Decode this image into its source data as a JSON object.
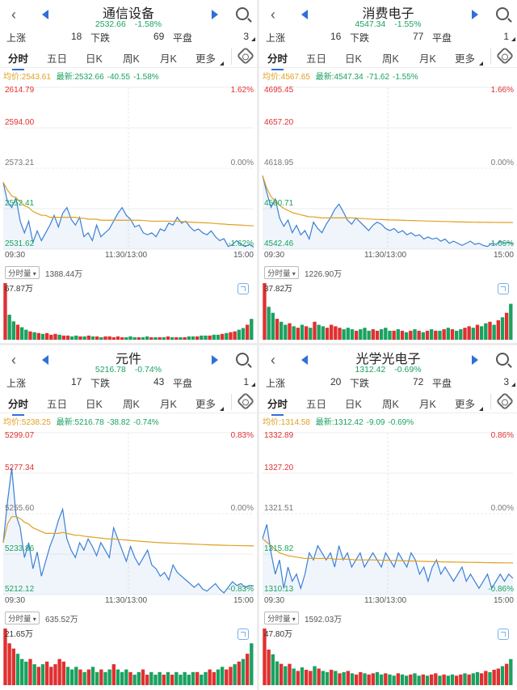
{
  "panels": [
    {
      "title": "通信设备",
      "quote": {
        "price": "2532.66",
        "pct": "-1.58%"
      },
      "stats": {
        "up_label": "上涨",
        "up": "18",
        "down_label": "下跌",
        "down": "69",
        "flat_label": "平盘",
        "flat": "3"
      },
      "tabs": [
        "分时",
        "五日",
        "日K",
        "周K",
        "月K",
        "更多"
      ],
      "info": {
        "avg_label": "均价:",
        "avg": "2543.61",
        "latest_label": "最新:",
        "latest": "2532.66",
        "chg": "-40.55",
        "pct": "-1.58%"
      },
      "y_labels": {
        "top": "2614.79",
        "upper": "2594.00",
        "mid": "2573.21",
        "lower": "2552.41",
        "bottom": "2531.62"
      },
      "pct_labels": {
        "top": "1.62%",
        "mid": "0.00%",
        "bottom": "-1.62%"
      },
      "time_labels": {
        "start": "09:30",
        "mid": "11:30/13:00",
        "end": "15:00"
      },
      "volume": {
        "button": "分时量",
        "total": "1388.44万",
        "max": "67.87万"
      },
      "chart_data": {
        "type": "line",
        "ylim": [
          2531.62,
          2614.79
        ],
        "prev_close": 2573.21,
        "price": [
          2566,
          2556,
          2553,
          2558,
          2546,
          2540,
          2546,
          2535,
          2541,
          2536,
          2540,
          2544,
          2549,
          2543,
          2550,
          2553,
          2547,
          2544,
          2548,
          2538,
          2540,
          2536,
          2544,
          2538,
          2540,
          2542,
          2546,
          2550,
          2553,
          2549,
          2547,
          2543,
          2544,
          2540,
          2539,
          2540,
          2538,
          2542,
          2541,
          2545,
          2544,
          2548,
          2545,
          2546,
          2543,
          2541,
          2542,
          2540,
          2539,
          2541,
          2538,
          2536,
          2537,
          2533,
          2534,
          2536,
          2534,
          2533,
          2534,
          2532.66
        ],
        "avg": [
          2566,
          2562,
          2559,
          2558,
          2556,
          2554,
          2553,
          2551,
          2550,
          2549,
          2549,
          2548,
          2548,
          2548,
          2548,
          2548,
          2548,
          2548,
          2547.5,
          2547.5,
          2547,
          2547,
          2547,
          2546.5,
          2546.5,
          2546.5,
          2546.5,
          2546.5,
          2546.5,
          2546.5,
          2546.5,
          2546.5,
          2546.5,
          2546.3,
          2546.2,
          2546,
          2546,
          2546,
          2546,
          2546,
          2546,
          2546,
          2545.8,
          2545.6,
          2545.5,
          2545.4,
          2545.3,
          2545.2,
          2545.1,
          2545,
          2544.8,
          2544.6,
          2544.5,
          2544.3,
          2544.2,
          2544.1,
          2544,
          2543.8,
          2543.7,
          2543.61
        ],
        "vol_max": 67.87,
        "volumes": [
          67.87,
          30,
          22,
          18,
          15,
          12,
          10,
          9,
          8,
          7,
          8,
          6,
          7,
          6,
          5,
          5,
          4,
          5,
          4,
          4,
          5,
          4,
          4,
          3,
          4,
          4,
          3,
          4,
          3,
          3,
          4,
          3,
          3,
          3,
          4,
          3,
          3,
          3,
          3,
          4,
          3,
          3,
          3,
          3,
          4,
          4,
          4,
          5,
          5,
          5,
          6,
          6,
          7,
          8,
          9,
          10,
          12,
          14,
          18,
          25
        ]
      }
    },
    {
      "title": "消费电子",
      "quote": {
        "price": "4547.34",
        "pct": "-1.55%"
      },
      "stats": {
        "up_label": "上涨",
        "up": "16",
        "down_label": "下跌",
        "down": "77",
        "flat_label": "平盘",
        "flat": "1"
      },
      "tabs": [
        "分时",
        "五日",
        "日K",
        "周K",
        "月K",
        "更多"
      ],
      "info": {
        "avg_label": "均价:",
        "avg": "4567.65",
        "latest_label": "最新:",
        "latest": "4547.34",
        "chg": "-71.62",
        "pct": "-1.55%"
      },
      "y_labels": {
        "top": "4695.45",
        "upper": "4657.20",
        "mid": "4618.95",
        "lower": "4580.71",
        "bottom": "4542.46"
      },
      "pct_labels": {
        "top": "1.66%",
        "mid": "0.00%",
        "bottom": "-1.66%"
      },
      "time_labels": {
        "start": "09:30",
        "mid": "11:30/13:00",
        "end": "15:00"
      },
      "volume": {
        "button": "分时量",
        "total": "1226.90万",
        "max": "37.82万"
      },
      "chart_data": {
        "type": "line",
        "ylim": [
          4542.46,
          4695.45
        ],
        "prev_close": 4618.95,
        "price": [
          4612,
          4596,
          4582,
          4590,
          4572,
          4564,
          4570,
          4558,
          4565,
          4556,
          4560,
          4552,
          4568,
          4562,
          4558,
          4566,
          4572,
          4580,
          4585,
          4578,
          4570,
          4566,
          4572,
          4568,
          4564,
          4560,
          4565,
          4568,
          4566,
          4562,
          4560,
          4562,
          4558,
          4560,
          4556,
          4558,
          4555,
          4556,
          4552,
          4554,
          4552,
          4553,
          4550,
          4552,
          4548,
          4550,
          4548,
          4546,
          4548,
          4550,
          4547,
          4548,
          4546,
          4545,
          4548,
          4547,
          4550,
          4548,
          4549,
          4547.34
        ],
        "avg": [
          4612,
          4600,
          4592,
          4588,
          4584,
          4581,
          4579,
          4577,
          4576,
          4575,
          4574,
          4573,
          4573,
          4572.5,
          4572,
          4572,
          4572,
          4572,
          4572,
          4572,
          4572,
          4572,
          4571.8,
          4571.5,
          4571.3,
          4571,
          4570.8,
          4570.6,
          4570.5,
          4570.3,
          4570.1,
          4570,
          4569.9,
          4569.8,
          4569.6,
          4569.5,
          4569.4,
          4569.3,
          4569.2,
          4569,
          4568.9,
          4568.8,
          4568.7,
          4568.6,
          4568.5,
          4568.4,
          4568.3,
          4568.2,
          4568.1,
          4568,
          4567.95,
          4567.9,
          4567.85,
          4567.8,
          4567.78,
          4567.75,
          4567.72,
          4567.7,
          4567.68,
          4567.65
        ],
        "vol_max": 37.82,
        "volumes": [
          37.82,
          22,
          18,
          14,
          12,
          10,
          11,
          9,
          8,
          10,
          9,
          8,
          12,
          10,
          9,
          8,
          10,
          9,
          8,
          7,
          8,
          7,
          6,
          7,
          8,
          6,
          7,
          6,
          7,
          8,
          6,
          6,
          7,
          6,
          5,
          6,
          7,
          6,
          5,
          6,
          7,
          6,
          6,
          7,
          8,
          7,
          6,
          7,
          8,
          9,
          8,
          10,
          9,
          11,
          12,
          10,
          13,
          15,
          18,
          24
        ]
      }
    },
    {
      "title": "元件",
      "quote": {
        "price": "5216.78",
        "pct": "-0.74%"
      },
      "stats": {
        "up_label": "上涨",
        "up": "17",
        "down_label": "下跌",
        "down": "43",
        "flat_label": "平盘",
        "flat": "1"
      },
      "tabs": [
        "分时",
        "五日",
        "日K",
        "周K",
        "月K",
        "更多"
      ],
      "info": {
        "avg_label": "均价:",
        "avg": "5238.25",
        "latest_label": "最新:",
        "latest": "5216.78",
        "chg": "-38.82",
        "pct": "-0.74%"
      },
      "y_labels": {
        "top": "5299.07",
        "upper": "5277.34",
        "mid": "5255.60",
        "lower": "5233.86",
        "bottom": "5212.12"
      },
      "pct_labels": {
        "top": "0.83%",
        "mid": "0.00%",
        "bottom": "-0.83%"
      },
      "time_labels": {
        "start": "09:30",
        "mid": "11:30/13:00",
        "end": "15:00"
      },
      "volume": {
        "button": "分时量",
        "total": "635.52万",
        "max": "21.65万"
      },
      "chart_data": {
        "type": "line",
        "ylim": [
          5212.12,
          5299.07
        ],
        "prev_close": 5255.6,
        "price": [
          5240,
          5262,
          5280,
          5255,
          5248,
          5232,
          5240,
          5226,
          5235,
          5222,
          5230,
          5238,
          5244,
          5252,
          5258,
          5242,
          5236,
          5232,
          5240,
          5236,
          5242,
          5238,
          5233,
          5240,
          5236,
          5232,
          5248,
          5242,
          5236,
          5230,
          5238,
          5232,
          5228,
          5232,
          5236,
          5228,
          5226,
          5222,
          5224,
          5220,
          5228,
          5224,
          5222,
          5220,
          5218,
          5216,
          5218,
          5215,
          5214,
          5216,
          5218,
          5215,
          5213,
          5216,
          5219,
          5217,
          5218,
          5216,
          5217,
          5216.78
        ],
        "avg": [
          5240,
          5250,
          5254,
          5254,
          5253,
          5251,
          5250,
          5248,
          5247,
          5246,
          5245,
          5245,
          5245,
          5245,
          5245.5,
          5245,
          5244.5,
          5244,
          5244,
          5243.5,
          5243.2,
          5243,
          5242.7,
          5242.5,
          5242.2,
          5242,
          5242,
          5241.8,
          5241.6,
          5241.4,
          5241.2,
          5241,
          5240.8,
          5240.6,
          5240.5,
          5240.3,
          5240.1,
          5240,
          5239.9,
          5239.8,
          5239.7,
          5239.6,
          5239.5,
          5239.4,
          5239.3,
          5239.2,
          5239.1,
          5239,
          5238.9,
          5238.8,
          5238.75,
          5238.7,
          5238.6,
          5238.55,
          5238.5,
          5238.45,
          5238.4,
          5238.35,
          5238.3,
          5238.25
        ],
        "vol_max": 21.65,
        "volumes": [
          21.65,
          16,
          14,
          12,
          10,
          9,
          10,
          8,
          7,
          8,
          9,
          7,
          8,
          10,
          9,
          7,
          6,
          7,
          6,
          5,
          6,
          7,
          5,
          6,
          5,
          6,
          8,
          6,
          5,
          6,
          5,
          4,
          5,
          6,
          4,
          5,
          4,
          5,
          4,
          5,
          4,
          5,
          4,
          5,
          4,
          5,
          5,
          4,
          5,
          6,
          5,
          6,
          7,
          6,
          7,
          8,
          9,
          10,
          12,
          16
        ]
      }
    },
    {
      "title": "光学光电子",
      "quote": {
        "price": "1312.42",
        "pct": "-0.69%"
      },
      "stats": {
        "up_label": "上涨",
        "up": "20",
        "down_label": "下跌",
        "down": "72",
        "flat_label": "平盘",
        "flat": "3"
      },
      "tabs": [
        "分时",
        "五日",
        "日K",
        "周K",
        "月K",
        "更多"
      ],
      "info": {
        "avg_label": "均价:",
        "avg": "1314.58",
        "latest_label": "最新:",
        "latest": "1312.42",
        "chg": "-9.09",
        "pct": "-0.69%"
      },
      "y_labels": {
        "top": "1332.89",
        "upper": "1327.20",
        "mid": "1321.51",
        "lower": "1315.82",
        "bottom": "1310.13"
      },
      "pct_labels": {
        "top": "0.86%",
        "mid": "0.00%",
        "bottom": "-0.86%"
      },
      "time_labels": {
        "start": "09:30",
        "mid": "11:30/13:00",
        "end": "15:00"
      },
      "volume": {
        "button": "分时量",
        "total": "1592.03万",
        "max": "47.80万"
      },
      "chart_data": {
        "type": "line",
        "ylim": [
          1310.13,
          1332.89
        ],
        "prev_close": 1321.51,
        "price": [
          1318,
          1320,
          1316,
          1313,
          1315,
          1311,
          1314,
          1312,
          1313,
          1311,
          1313,
          1316,
          1315,
          1317,
          1316,
          1315,
          1316,
          1314,
          1317,
          1315,
          1316,
          1314,
          1315,
          1316,
          1314,
          1315,
          1316,
          1315,
          1314,
          1316,
          1315,
          1314,
          1316,
          1315,
          1314,
          1316,
          1315,
          1313,
          1314,
          1312,
          1314,
          1315,
          1313,
          1314,
          1313,
          1312,
          1313,
          1314,
          1312,
          1313,
          1312,
          1311,
          1312,
          1313,
          1311,
          1312,
          1313,
          1312,
          1313,
          1312.42
        ],
        "avg": [
          1318,
          1317.5,
          1317,
          1316.5,
          1316,
          1315.8,
          1315.6,
          1315.5,
          1315.4,
          1315.3,
          1315.2,
          1315.2,
          1315.2,
          1315.2,
          1315.2,
          1315.2,
          1315.2,
          1315.1,
          1315.1,
          1315.1,
          1315.1,
          1315.05,
          1315,
          1315,
          1315,
          1315,
          1315,
          1314.98,
          1314.96,
          1314.95,
          1314.93,
          1314.92,
          1314.9,
          1314.88,
          1314.87,
          1314.85,
          1314.84,
          1314.82,
          1314.8,
          1314.78,
          1314.77,
          1314.75,
          1314.74,
          1314.72,
          1314.71,
          1314.7,
          1314.69,
          1314.68,
          1314.67,
          1314.66,
          1314.65,
          1314.64,
          1314.63,
          1314.62,
          1314.61,
          1314.6,
          1314.6,
          1314.59,
          1314.59,
          1314.58
        ],
        "vol_max": 47.8,
        "volumes": [
          47.8,
          30,
          26,
          20,
          18,
          16,
          18,
          14,
          12,
          15,
          13,
          12,
          16,
          14,
          12,
          11,
          13,
          12,
          10,
          11,
          12,
          10,
          9,
          11,
          10,
          9,
          10,
          11,
          9,
          10,
          9,
          8,
          10,
          9,
          8,
          9,
          10,
          8,
          9,
          8,
          9,
          10,
          8,
          9,
          8,
          9,
          8,
          9,
          10,
          9,
          10,
          11,
          10,
          12,
          11,
          13,
          14,
          16,
          18,
          22
        ]
      }
    }
  ],
  "colors": {
    "up": "#e03030",
    "down": "#1aa260",
    "price_line": "#3a7fd6",
    "avg_line": "#e0a020",
    "grid": "#dddddd"
  }
}
